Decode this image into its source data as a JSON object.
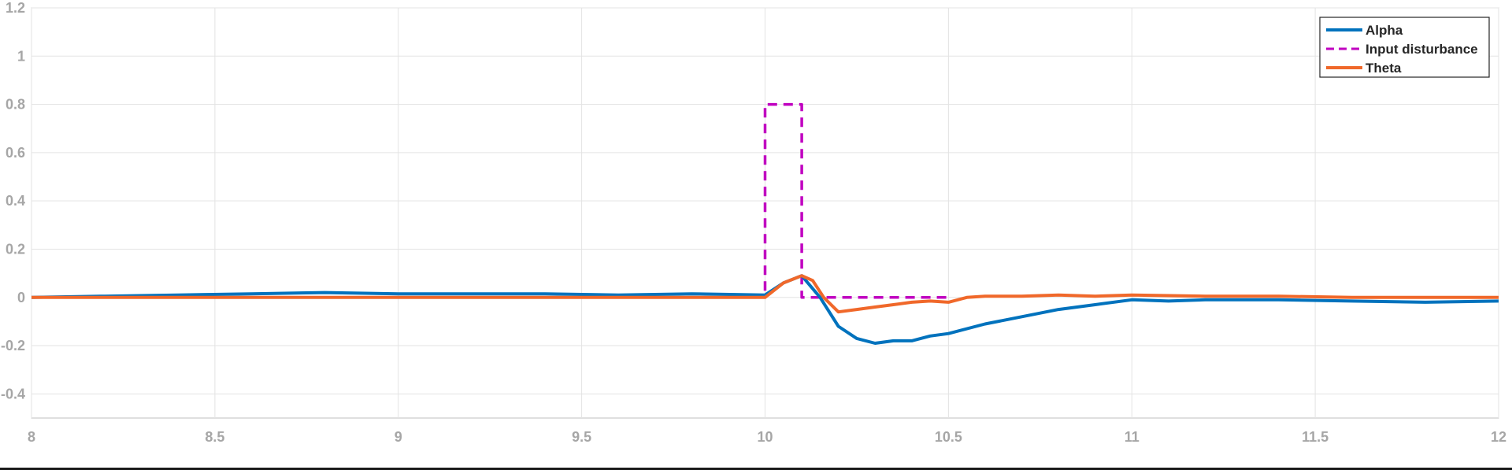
{
  "chart_data": {
    "type": "line",
    "title": "",
    "xlabel": "",
    "ylabel": "",
    "xlim": [
      8,
      12
    ],
    "ylim": [
      -0.5,
      1.2
    ],
    "xticks": [
      8,
      8.5,
      9,
      9.5,
      10,
      10.5,
      11,
      11.5,
      12
    ],
    "xtick_labels": [
      "8",
      "8.5",
      "9",
      "9.5",
      "10",
      "10.5",
      "11",
      "11.5",
      "12"
    ],
    "yticks": [
      -0.4,
      -0.2,
      0,
      0.2,
      0.4,
      0.6,
      0.8,
      1,
      1.2
    ],
    "ytick_labels": [
      "-0.4",
      "-0.2",
      "0",
      "0.2",
      "0.4",
      "0.6",
      "0.8",
      "1",
      "1.2"
    ],
    "grid": true,
    "legend_position": "top-right",
    "series": [
      {
        "name": "Alpha",
        "color": "#0072bd",
        "style": "solid",
        "x": [
          8,
          8.2,
          8.4,
          8.6,
          8.8,
          9,
          9.2,
          9.4,
          9.6,
          9.8,
          10,
          10.05,
          10.1,
          10.15,
          10.2,
          10.25,
          10.3,
          10.35,
          10.4,
          10.45,
          10.5,
          10.6,
          10.7,
          10.8,
          10.9,
          11,
          11.1,
          11.2,
          11.4,
          11.6,
          11.8,
          12
        ],
        "y": [
          0,
          0.005,
          0.01,
          0.015,
          0.02,
          0.015,
          0.015,
          0.015,
          0.01,
          0.015,
          0.01,
          0.06,
          0.09,
          0.0,
          -0.12,
          -0.17,
          -0.19,
          -0.18,
          -0.18,
          -0.16,
          -0.15,
          -0.11,
          -0.08,
          -0.05,
          -0.03,
          -0.01,
          -0.015,
          -0.01,
          -0.01,
          -0.015,
          -0.02,
          -0.015
        ]
      },
      {
        "name": "Input disturbance",
        "color": "#c000c0",
        "style": "dashed",
        "x": [
          8,
          10,
          10,
          10.1,
          10.1,
          10.5
        ],
        "y": [
          0,
          0,
          0.8,
          0.8,
          0,
          0
        ]
      },
      {
        "name": "Theta",
        "color": "#f0682a",
        "style": "solid",
        "x": [
          8,
          8.2,
          8.4,
          8.6,
          8.8,
          9,
          9.2,
          9.4,
          9.6,
          9.8,
          10,
          10.05,
          10.1,
          10.13,
          10.16,
          10.2,
          10.25,
          10.3,
          10.35,
          10.4,
          10.45,
          10.5,
          10.55,
          10.6,
          10.7,
          10.8,
          10.9,
          11,
          11.2,
          11.4,
          11.6,
          11.8,
          12
        ],
        "y": [
          0,
          0,
          0,
          0,
          0,
          0,
          0,
          0,
          0,
          0,
          0,
          0.06,
          0.09,
          0.07,
          0.0,
          -0.06,
          -0.05,
          -0.04,
          -0.03,
          -0.02,
          -0.015,
          -0.02,
          0.0,
          0.005,
          0.005,
          0.01,
          0.005,
          0.01,
          0.005,
          0.005,
          0.0,
          0.0,
          0.0
        ]
      }
    ]
  }
}
